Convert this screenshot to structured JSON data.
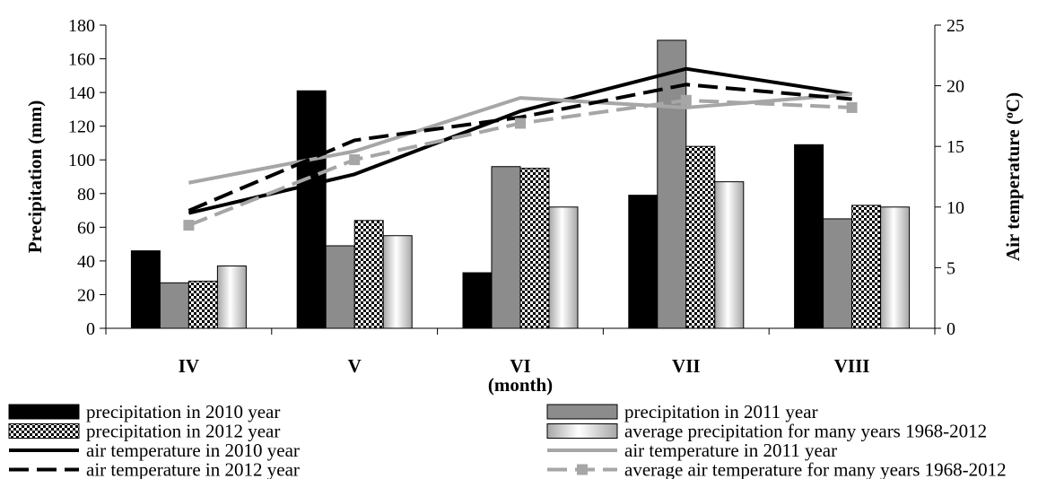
{
  "chart_data": {
    "type": "bar",
    "categories": [
      "IV",
      "V",
      "VI",
      "VII",
      "VIII"
    ],
    "xlabel": "(month)",
    "ylabel_left": "Precipitation (mm)",
    "ylabel_right_parts": [
      "Air temperature (",
      "o",
      "C)"
    ],
    "ylim_left": [
      0,
      180
    ],
    "yticks_left": [
      "0",
      "20",
      "40",
      "60",
      "80",
      "100",
      "120",
      "140",
      "160",
      "180"
    ],
    "ylim_right": [
      0,
      25
    ],
    "yticks_right": [
      "0",
      "5",
      "10",
      "15",
      "20",
      "25"
    ],
    "bar_series": [
      {
        "key": "p2010",
        "name": "precipitation in  2010 year",
        "color": "#000000",
        "pattern": "solid",
        "values": [
          46,
          141,
          33,
          79,
          109
        ]
      },
      {
        "key": "p2011",
        "name": "precipitation in 2011 year",
        "color": "#8c8c8c",
        "pattern": "solid",
        "values": [
          27,
          49,
          96,
          171,
          65
        ]
      },
      {
        "key": "p2012",
        "name": "precipitation in 2012 year",
        "color": "#000000",
        "pattern": "checker",
        "values": [
          28,
          64,
          95,
          108,
          73
        ]
      },
      {
        "key": "pavg",
        "name": "average precipitation for many years 1968-2012",
        "color": "#d9d9d9",
        "pattern": "gradient",
        "values": [
          37,
          55,
          72,
          87,
          72
        ]
      }
    ],
    "line_series": [
      {
        "key": "t2010",
        "name": "air temperature in 2010 year",
        "color": "#000000",
        "dash": "solid",
        "marker": false,
        "values": [
          9.5,
          12.7,
          17.9,
          21.4,
          19.3
        ]
      },
      {
        "key": "t2011",
        "name": "air temperature in 2011 year",
        "color": "#a6a6a6",
        "dash": "solid",
        "marker": false,
        "values": [
          12,
          14.6,
          19,
          18.2,
          19.3
        ]
      },
      {
        "key": "t2012",
        "name": "air temperature in 2012 year",
        "color": "#000000",
        "dash": "dashed",
        "marker": false,
        "values": [
          9.7,
          15.5,
          17.4,
          20.1,
          18.9
        ]
      },
      {
        "key": "tavg",
        "name": "average air temperature for many years 1968-2012",
        "color": "#a6a6a6",
        "dash": "dashed",
        "marker": true,
        "values": [
          8.5,
          13.9,
          16.9,
          18.8,
          18.2
        ]
      }
    ],
    "legend_order": [
      "p2010",
      "p2011",
      "p2012",
      "pavg",
      "t2010",
      "t2011",
      "t2012",
      "tavg"
    ],
    "legend_position": "bottom"
  }
}
